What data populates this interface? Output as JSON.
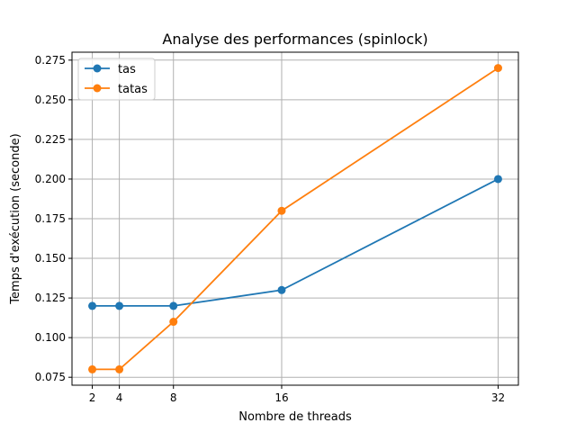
{
  "chart_data": {
    "type": "line",
    "title": "Analyse des performances (spinlock)",
    "xlabel": "Nombre de threads",
    "ylabel": "Temps d'exécution (seconde)",
    "x": [
      2,
      4,
      8,
      16,
      32
    ],
    "x_ticks": [
      "2",
      "4",
      "8",
      "16",
      "32"
    ],
    "y_ticks": [
      "0.075",
      "0.100",
      "0.125",
      "0.150",
      "0.175",
      "0.200",
      "0.225",
      "0.250",
      "0.275"
    ],
    "xlim": [
      0.5,
      33.5
    ],
    "ylim": [
      0.07,
      0.28
    ],
    "grid": true,
    "legend_position": "top-left",
    "series": [
      {
        "name": "tas",
        "color": "#1f77b4",
        "values": [
          0.12,
          0.12,
          0.12,
          0.13,
          0.2
        ]
      },
      {
        "name": "tatas",
        "color": "#ff7f0e",
        "values": [
          0.08,
          0.08,
          0.11,
          0.18,
          0.27
        ]
      }
    ]
  }
}
